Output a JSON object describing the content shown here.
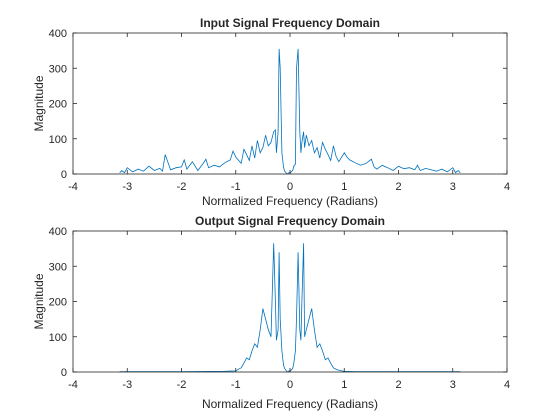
{
  "chart_data": [
    {
      "type": "line",
      "title": "Input Signal Frequency Domain",
      "xlabel": "Normalized Frequency (Radians)",
      "ylabel": "Magnitude",
      "xlim": [
        -4,
        4
      ],
      "ylim": [
        0,
        400
      ],
      "xticks": [
        "-4",
        "-3",
        "-2",
        "-1",
        "0",
        "1",
        "2",
        "3",
        "4"
      ],
      "yticks": [
        "0",
        "100",
        "200",
        "300",
        "400"
      ],
      "grid": false,
      "series": [
        {
          "color": "#0072BD",
          "x": [
            -3.14,
            -3.1,
            -3.05,
            -3.0,
            -2.9,
            -2.8,
            -2.7,
            -2.6,
            -2.5,
            -2.4,
            -2.35,
            -2.3,
            -2.2,
            -2.1,
            -2.0,
            -1.95,
            -1.9,
            -1.8,
            -1.7,
            -1.6,
            -1.55,
            -1.5,
            -1.4,
            -1.3,
            -1.2,
            -1.1,
            -1.05,
            -1.0,
            -0.9,
            -0.85,
            -0.8,
            -0.75,
            -0.7,
            -0.65,
            -0.6,
            -0.55,
            -0.5,
            -0.45,
            -0.4,
            -0.35,
            -0.3,
            -0.27,
            -0.25,
            -0.22,
            -0.2,
            -0.18,
            -0.15,
            -0.12,
            -0.1,
            -0.07,
            -0.05,
            -0.02,
            0.0,
            0.02,
            0.05,
            0.07,
            0.1,
            0.12,
            0.15,
            0.18,
            0.2,
            0.22,
            0.25,
            0.27,
            0.3,
            0.35,
            0.4,
            0.45,
            0.5,
            0.55,
            0.6,
            0.65,
            0.7,
            0.75,
            0.8,
            0.85,
            0.9,
            1.0,
            1.05,
            1.1,
            1.2,
            1.3,
            1.4,
            1.5,
            1.55,
            1.6,
            1.7,
            1.8,
            1.9,
            2.0,
            2.1,
            2.2,
            2.3,
            2.35,
            2.4,
            2.5,
            2.6,
            2.7,
            2.8,
            2.9,
            3.0,
            3.05,
            3.1,
            3.14
          ],
          "y": [
            3,
            10,
            4,
            18,
            6,
            14,
            8,
            22,
            10,
            16,
            8,
            55,
            12,
            18,
            20,
            40,
            14,
            35,
            10,
            30,
            42,
            18,
            25,
            20,
            32,
            40,
            65,
            48,
            30,
            70,
            55,
            38,
            80,
            45,
            95,
            60,
            75,
            110,
            80,
            90,
            120,
            125,
            60,
            120,
            355,
            300,
            60,
            20,
            8,
            3,
            0,
            4,
            2,
            6,
            10,
            22,
            28,
            300,
            355,
            120,
            60,
            90,
            120,
            75,
            110,
            80,
            95,
            60,
            75,
            45,
            90,
            70,
            55,
            38,
            80,
            50,
            35,
            60,
            48,
            40,
            32,
            25,
            30,
            42,
            20,
            14,
            25,
            18,
            10,
            22,
            15,
            18,
            12,
            25,
            10,
            16,
            12,
            8,
            14,
            6,
            18,
            4,
            10,
            3
          ]
        }
      ]
    },
    {
      "type": "line",
      "title": "Output Signal Frequency Domain",
      "xlabel": "Normalized Frequency (Radians)",
      "ylabel": "Magnitude",
      "xlim": [
        -4,
        4
      ],
      "ylim": [
        0,
        400
      ],
      "xticks": [
        "-4",
        "-3",
        "-2",
        "-1",
        "0",
        "1",
        "2",
        "3",
        "4"
      ],
      "yticks": [
        "0",
        "100",
        "200",
        "300",
        "400"
      ],
      "grid": false,
      "series": [
        {
          "color": "#0072BD",
          "x": [
            -3.14,
            -2.0,
            -1.2,
            -1.0,
            -0.95,
            -0.9,
            -0.85,
            -0.8,
            -0.75,
            -0.7,
            -0.65,
            -0.6,
            -0.55,
            -0.5,
            -0.45,
            -0.4,
            -0.35,
            -0.3,
            -0.27,
            -0.25,
            -0.22,
            -0.2,
            -0.18,
            -0.15,
            -0.12,
            -0.1,
            -0.07,
            -0.05,
            -0.02,
            0.0,
            0.02,
            0.05,
            0.07,
            0.1,
            0.12,
            0.15,
            0.18,
            0.2,
            0.22,
            0.25,
            0.27,
            0.3,
            0.35,
            0.4,
            0.45,
            0.5,
            0.55,
            0.6,
            0.65,
            0.7,
            0.75,
            0.8,
            0.85,
            0.9,
            0.95,
            1.0,
            1.2,
            2.0,
            3.14
          ],
          "y": [
            1,
            1,
            2,
            3,
            8,
            12,
            25,
            40,
            35,
            60,
            80,
            70,
            120,
            180,
            150,
            120,
            100,
            365,
            200,
            90,
            120,
            340,
            150,
            60,
            20,
            10,
            4,
            0,
            3,
            2,
            5,
            10,
            25,
            60,
            150,
            340,
            120,
            90,
            200,
            365,
            100,
            120,
            150,
            180,
            120,
            70,
            80,
            60,
            35,
            40,
            25,
            12,
            8,
            5,
            3,
            2,
            1,
            1,
            1
          ]
        }
      ]
    }
  ]
}
